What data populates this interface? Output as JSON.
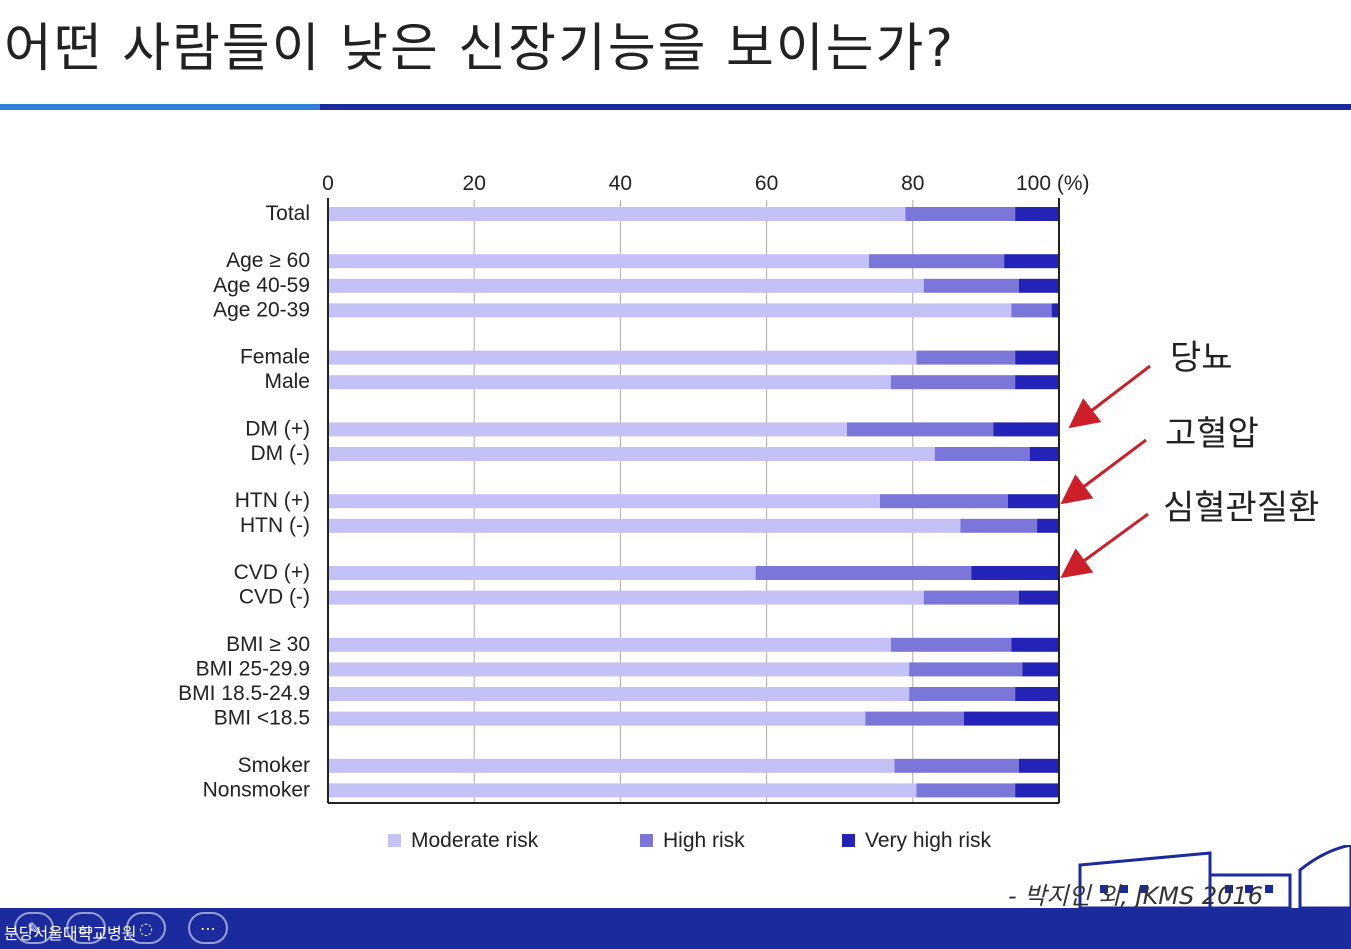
{
  "slide": {
    "title": "어떤 사람들이 낮은 신장기능을 보이는가?",
    "citation": "- 박지인 외, JKMS 2016",
    "footer_logo": "분당서울대학교병원",
    "footer_controls": [
      "✎",
      "▭",
      "◌",
      "⋯"
    ]
  },
  "annotations": [
    "당뇨",
    "고혈압",
    "심혈관질환"
  ],
  "colors": {
    "moderate": "#c3c1f5",
    "high": "#7b77d9",
    "very_high": "#2323b8",
    "grid": "#aaaaaa",
    "arrow": "#cc1f2a",
    "accent_rule_left": "#2f7fd6",
    "accent_rule_right": "#1c2aa0"
  },
  "chart_data": {
    "type": "bar",
    "orientation": "horizontal",
    "stacked": true,
    "xlim": [
      0,
      100
    ],
    "x_ticks": [
      "0",
      "20",
      "40",
      "60",
      "80",
      "100 (%)"
    ],
    "grid": true,
    "legend_position": "bottom",
    "categories": [
      "Total",
      "Age ≥ 60",
      "Age 40-59",
      "Age 20-39",
      "Female",
      "Male",
      "DM (+)",
      "DM (-)",
      "HTN  (+)",
      "HTN (-)",
      "CVD (+)",
      "CVD (-)",
      "BMI ≥ 30",
      "BMI 25-29.9",
      "BMI 18.5-24.9",
      "BMI <18.5",
      "Smoker",
      "Nonsmoker"
    ],
    "groups": [
      [
        0
      ],
      [
        1,
        2,
        3
      ],
      [
        4,
        5
      ],
      [
        6,
        7
      ],
      [
        8,
        9
      ],
      [
        10,
        11
      ],
      [
        12,
        13,
        14,
        15
      ],
      [
        16,
        17
      ]
    ],
    "series": [
      {
        "name": "Moderate risk",
        "values": [
          79,
          74,
          81.5,
          93.5,
          80.5,
          77,
          71,
          83,
          75.5,
          86.5,
          58.5,
          81.5,
          77,
          79.5,
          79.5,
          73.5,
          77.5,
          80.5
        ]
      },
      {
        "name": "High risk",
        "values": [
          15,
          18.5,
          13,
          5.5,
          13.5,
          17,
          20,
          13,
          17.5,
          10.5,
          29.5,
          13,
          16.5,
          15.5,
          14.5,
          13.5,
          17,
          13.5
        ]
      },
      {
        "name": "Very high risk",
        "values": [
          6,
          7.5,
          5.5,
          1,
          6,
          6,
          9,
          4,
          7,
          3,
          12,
          5.5,
          6.5,
          5,
          6,
          13,
          5.5,
          6
        ]
      }
    ]
  }
}
